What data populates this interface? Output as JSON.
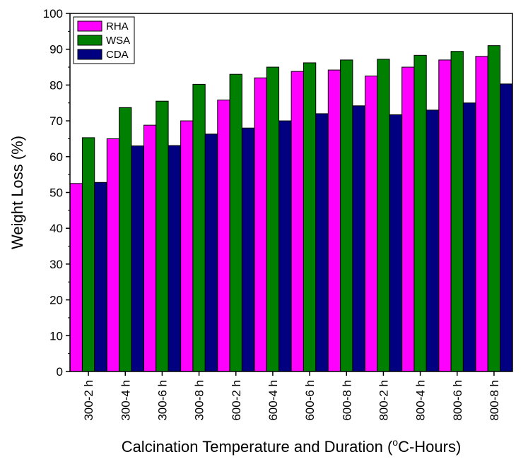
{
  "chart_data": {
    "type": "bar",
    "title": "",
    "xlabel_main": "Calcination Temperature and Duration (",
    "xlabel_sup": "o",
    "xlabel_end": "C-Hours)",
    "ylabel": "Weight Loss (%)",
    "ylim": [
      0,
      100
    ],
    "yticks": [
      "0",
      "10",
      "20",
      "30",
      "40",
      "50",
      "60",
      "70",
      "80",
      "90",
      "100"
    ],
    "categories": [
      "300-2 h",
      "300-4 h",
      "300-6 h",
      "300-8 h",
      "600-2 h",
      "600-4 h",
      "600-6 h",
      "600-8 h",
      "800-2 h",
      "800-4 h",
      "800-6 h",
      "800-8 h"
    ],
    "series": [
      {
        "name": "RHA",
        "color": "#ff00ff",
        "values": [
          52.5,
          65.0,
          68.8,
          70.0,
          75.8,
          82.0,
          83.8,
          84.2,
          82.5,
          85.0,
          87.0,
          88.0
        ]
      },
      {
        "name": "WSA",
        "color": "#008000",
        "values": [
          65.3,
          73.7,
          75.5,
          80.2,
          83.0,
          85.0,
          86.2,
          87.0,
          87.2,
          88.3,
          89.4,
          91.0
        ]
      },
      {
        "name": "CDA",
        "color": "#000080",
        "values": [
          52.8,
          63.0,
          63.1,
          66.3,
          68.0,
          70.0,
          72.0,
          74.2,
          71.7,
          73.0,
          75.0,
          80.3
        ]
      }
    ],
    "legend_position": "top-left"
  }
}
